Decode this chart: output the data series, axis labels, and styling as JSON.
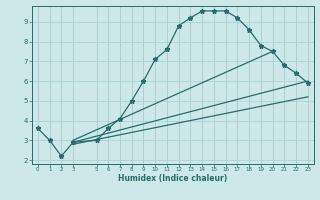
{
  "xlabel": "Humidex (Indice chaleur)",
  "bg_color": "#cce8e8",
  "line_color": "#2a6b6b",
  "grid_color": "#aad4d4",
  "line1_x": [
    0,
    1,
    2,
    3,
    5,
    6,
    7,
    8,
    9,
    10,
    11,
    12,
    13,
    14,
    15,
    16,
    17,
    18,
    19,
    20,
    21,
    22,
    23
  ],
  "line1_y": [
    3.6,
    3.0,
    2.2,
    2.9,
    3.0,
    3.6,
    4.1,
    5.0,
    6.0,
    7.1,
    7.6,
    8.8,
    9.2,
    9.55,
    9.55,
    9.55,
    9.2,
    8.6,
    7.8,
    7.5,
    6.8,
    6.4,
    5.9
  ],
  "line2_x": [
    3,
    20
  ],
  "line2_y": [
    3.0,
    7.5
  ],
  "line3_x": [
    3,
    23
  ],
  "line3_y": [
    2.9,
    6.0
  ],
  "line4_x": [
    3,
    23
  ],
  "line4_y": [
    2.8,
    5.2
  ],
  "xlim": [
    -0.5,
    23.5
  ],
  "ylim": [
    1.8,
    9.8
  ],
  "yticks": [
    2,
    3,
    4,
    5,
    6,
    7,
    8,
    9
  ],
  "xticks": [
    0,
    1,
    2,
    3,
    5,
    6,
    7,
    8,
    9,
    10,
    11,
    12,
    13,
    14,
    15,
    16,
    17,
    18,
    19,
    20,
    21,
    22,
    23
  ],
  "xticklabels": [
    "0",
    "1",
    "2",
    "3",
    "5",
    "6",
    "7",
    "8",
    "9",
    "10",
    "11",
    "12",
    "13",
    "14",
    "15",
    "16",
    "17",
    "18",
    "19",
    "20",
    "21",
    "22",
    "23"
  ]
}
